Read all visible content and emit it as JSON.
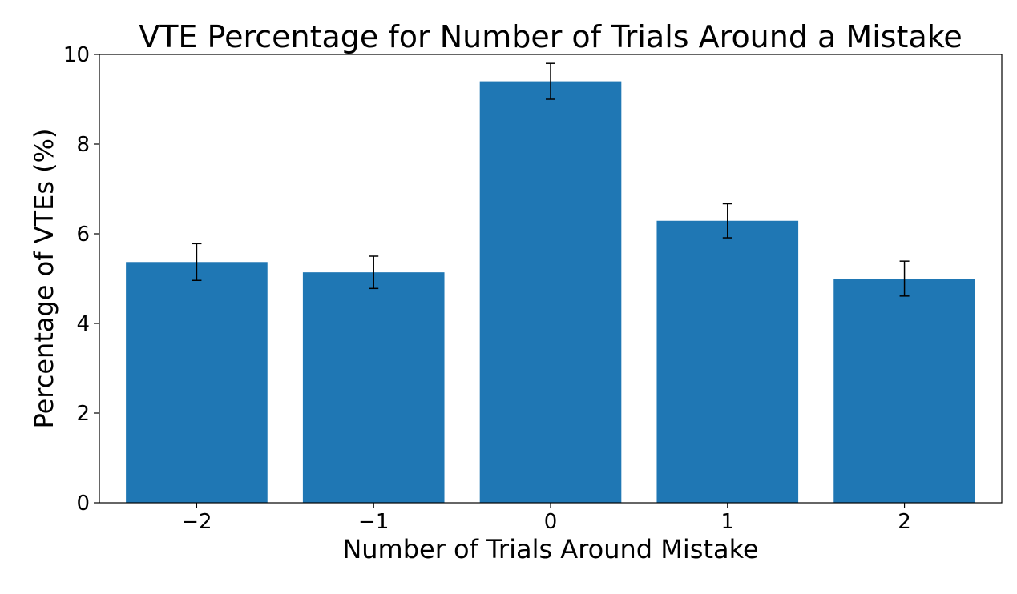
{
  "chart_data": {
    "type": "bar",
    "title": "VTE Percentage for Number of Trials Around a Mistake",
    "xlabel": "Number of Trials Around Mistake",
    "ylabel": "Percentage of VTEs (%)",
    "categories": [
      "−2",
      "−1",
      "0",
      "1",
      "2"
    ],
    "values": [
      5.37,
      5.14,
      9.4,
      6.29,
      5.0
    ],
    "errors": [
      0.41,
      0.36,
      0.4,
      0.38,
      0.39
    ],
    "ylim": [
      0,
      10
    ],
    "yticks": [
      "0",
      "2",
      "4",
      "6",
      "8",
      "10"
    ],
    "grid": false,
    "colors": {
      "bar": "#1f77b4",
      "error_bar": "#000000",
      "axis": "#000000"
    }
  }
}
